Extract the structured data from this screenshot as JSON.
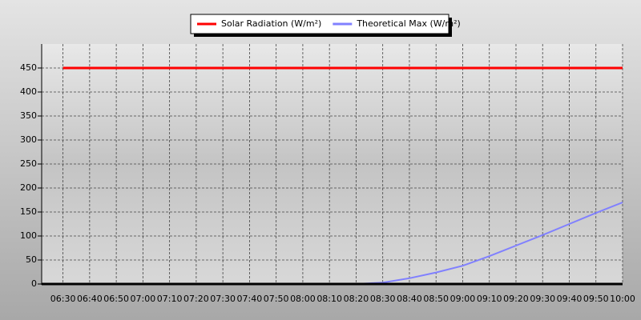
{
  "chart_data": {
    "type": "line",
    "x": [
      "06:30",
      "06:40",
      "06:50",
      "07:00",
      "07:10",
      "07:20",
      "07:30",
      "07:40",
      "07:50",
      "08:00",
      "08:10",
      "08:20",
      "08:30",
      "08:40",
      "08:50",
      "09:00",
      "09:10",
      "09:20",
      "09:30",
      "09:40",
      "09:50",
      "10:00"
    ],
    "series": [
      {
        "name": "Solar Radiation (W/m²)",
        "color": "#ff0000",
        "values": [
          450,
          450,
          450,
          450,
          450,
          450,
          450,
          450,
          450,
          450,
          450,
          450,
          450,
          450,
          450,
          450,
          450,
          450,
          450,
          450,
          450,
          450
        ]
      },
      {
        "name": "Theoretical Max (W/m²)",
        "color": "#8080ff",
        "values": [
          0,
          0,
          0,
          0,
          0,
          0,
          0,
          0,
          0,
          0,
          0,
          0,
          3,
          12,
          24,
          38,
          58,
          80,
          102,
          125,
          148,
          170
        ]
      }
    ],
    "xlim": [
      "06:22",
      "10:00"
    ],
    "xticks": [
      "06:30",
      "06:40",
      "06:50",
      "07:00",
      "07:10",
      "07:20",
      "07:30",
      "07:40",
      "07:50",
      "08:00",
      "08:10",
      "08:20",
      "08:30",
      "08:40",
      "08:50",
      "09:00",
      "09:10",
      "09:20",
      "09:30",
      "09:40",
      "09:50",
      "10:00"
    ],
    "ylim": [
      0,
      500
    ],
    "yticks": [
      0,
      50,
      100,
      150,
      200,
      250,
      300,
      350,
      400,
      450
    ],
    "grid": true,
    "legend": "top"
  }
}
